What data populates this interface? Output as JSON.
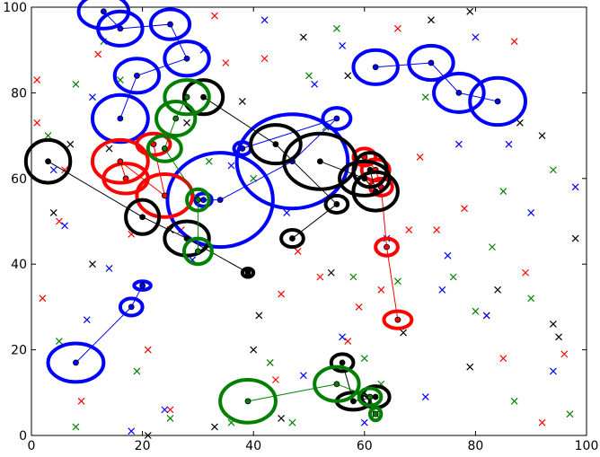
{
  "chart_data": {
    "type": "scatter",
    "xlim": [
      0,
      100
    ],
    "ylim": [
      0,
      100
    ],
    "xticks": [
      0,
      20,
      40,
      60,
      80,
      100
    ],
    "yticks": [
      0,
      20,
      40,
      60,
      80,
      100
    ],
    "series": [
      {
        "marker": "x",
        "color": "#ff0000",
        "x": [
          1,
          1,
          5,
          9,
          12,
          18,
          21,
          27,
          33,
          35,
          42,
          45,
          48,
          52,
          57,
          59,
          63,
          66,
          70,
          73,
          78,
          82,
          85,
          89,
          92,
          96,
          2,
          6,
          25,
          44,
          68,
          87
        ],
        "y": [
          83,
          73,
          50,
          8,
          89,
          47,
          20,
          48,
          98,
          87,
          88,
          33,
          43,
          37,
          22,
          30,
          34,
          95,
          65,
          48,
          53,
          28,
          18,
          38,
          3,
          19,
          32,
          62,
          6,
          13,
          48,
          92
        ]
      },
      {
        "marker": "x",
        "color": "#008000",
        "x": [
          3,
          5,
          8,
          13,
          19,
          25,
          32,
          36,
          40,
          43,
          50,
          53,
          55,
          58,
          63,
          66,
          71,
          76,
          80,
          83,
          87,
          90,
          94,
          97,
          8,
          16,
          47,
          60,
          85
        ],
        "y": [
          70,
          22,
          82,
          92,
          15,
          4,
          64,
          3,
          60,
          17,
          84,
          72,
          95,
          37,
          12,
          36,
          79,
          37,
          29,
          44,
          8,
          32,
          62,
          5,
          2,
          83,
          3,
          18,
          57
        ]
      },
      {
        "marker": "x",
        "color": "#0000ff",
        "x": [
          4,
          6,
          10,
          14,
          18,
          24,
          31,
          36,
          42,
          46,
          49,
          51,
          56,
          60,
          64,
          71,
          74,
          77,
          80,
          82,
          86,
          90,
          94,
          98,
          11,
          29,
          56,
          75
        ],
        "y": [
          62,
          49,
          27,
          39,
          1,
          6,
          90,
          63,
          97,
          52,
          14,
          82,
          91,
          3,
          46,
          9,
          34,
          68,
          93,
          28,
          68,
          52,
          15,
          58,
          79,
          41,
          23,
          42
        ]
      },
      {
        "marker": "x",
        "color": "#000000",
        "x": [
          4,
          7,
          11,
          14,
          21,
          28,
          33,
          38,
          40,
          45,
          49,
          54,
          60,
          62,
          67,
          72,
          79,
          84,
          88,
          92,
          95,
          98,
          25,
          41,
          57,
          79,
          94
        ],
        "y": [
          52,
          68,
          40,
          67,
          0,
          73,
          2,
          78,
          20,
          4,
          93,
          38,
          10,
          5,
          24,
          97,
          16,
          34,
          73,
          70,
          23,
          46,
          48,
          28,
          84,
          99,
          26
        ]
      },
      {
        "marker": "ellipse",
        "color": "#0000ff",
        "x": [
          13,
          16,
          25,
          28,
          19,
          16
        ],
        "y": [
          99,
          95,
          96,
          88,
          84,
          74
        ],
        "width": [
          9,
          8,
          7,
          8,
          8,
          10
        ],
        "height": [
          8,
          8,
          7,
          8,
          8,
          11
        ]
      },
      {
        "marker": "ellipse",
        "color": "#0000ff",
        "x": [
          31,
          34,
          47,
          55,
          38
        ],
        "y": [
          55,
          55,
          64,
          74,
          67
        ],
        "width": [
          3,
          19,
          20,
          5,
          3
        ],
        "height": [
          3,
          22,
          22,
          5,
          3
        ]
      },
      {
        "marker": "ellipse",
        "color": "#0000ff",
        "x": [
          62,
          72,
          77,
          84
        ],
        "y": [
          86,
          87,
          80,
          78
        ],
        "width": [
          8,
          8,
          9,
          10
        ],
        "height": [
          8,
          8,
          9,
          11
        ]
      },
      {
        "marker": "ellipse",
        "color": "#0000ff",
        "x": [
          8,
          18,
          20
        ],
        "y": [
          17,
          30,
          35
        ],
        "width": [
          10,
          4,
          3
        ],
        "height": [
          9,
          4,
          2
        ]
      },
      {
        "marker": "ellipse",
        "color": "#ff0000",
        "x": [
          17,
          16,
          24,
          22
        ],
        "y": [
          60,
          64,
          56,
          68
        ],
        "width": [
          8,
          10,
          10,
          6
        ],
        "height": [
          7,
          10,
          10,
          5
        ]
      },
      {
        "marker": "ellipse",
        "color": "#ff0000",
        "x": [
          60,
          62,
          63,
          64,
          66
        ],
        "y": [
          65,
          62,
          58,
          44,
          27
        ],
        "width": [
          4,
          5,
          4,
          4,
          5
        ],
        "height": [
          4,
          5,
          4,
          4,
          4
        ]
      },
      {
        "marker": "ellipse",
        "color": "#000000",
        "x": [
          3,
          20,
          28,
          39
        ],
        "y": [
          64,
          51,
          46,
          38
        ],
        "width": [
          8,
          6,
          8,
          2
        ],
        "height": [
          10,
          8,
          8,
          2
        ]
      },
      {
        "marker": "ellipse",
        "color": "#000000",
        "x": [
          52,
          60,
          62,
          61
        ],
        "y": [
          64,
          60,
          57,
          62
        ],
        "width": [
          13,
          9,
          8,
          6
        ],
        "height": [
          13,
          8,
          9,
          8
        ]
      },
      {
        "marker": "ellipse",
        "color": "#000000",
        "x": [
          31,
          44,
          55,
          47
        ],
        "y": [
          79,
          68,
          54,
          46
        ],
        "width": [
          7,
          9,
          4,
          4
        ],
        "height": [
          8,
          9,
          4,
          4
        ]
      },
      {
        "marker": "ellipse",
        "color": "#000000",
        "x": [
          56,
          58,
          62
        ],
        "y": [
          17,
          8,
          9
        ],
        "width": [
          4,
          6,
          5
        ],
        "height": [
          4,
          4,
          5
        ]
      },
      {
        "marker": "ellipse",
        "color": "#008000",
        "x": [
          28,
          26,
          24,
          30,
          30
        ],
        "y": [
          79,
          74,
          67,
          55,
          43
        ],
        "width": [
          8,
          7,
          6,
          4,
          5
        ],
        "height": [
          8,
          8,
          6,
          5,
          6
        ]
      },
      {
        "marker": "ellipse",
        "color": "#008000",
        "x": [
          39,
          55,
          61,
          62
        ],
        "y": [
          8,
          12,
          9,
          5
        ],
        "width": [
          10,
          8,
          4,
          2
        ],
        "height": [
          10,
          8,
          4,
          3
        ]
      }
    ]
  }
}
